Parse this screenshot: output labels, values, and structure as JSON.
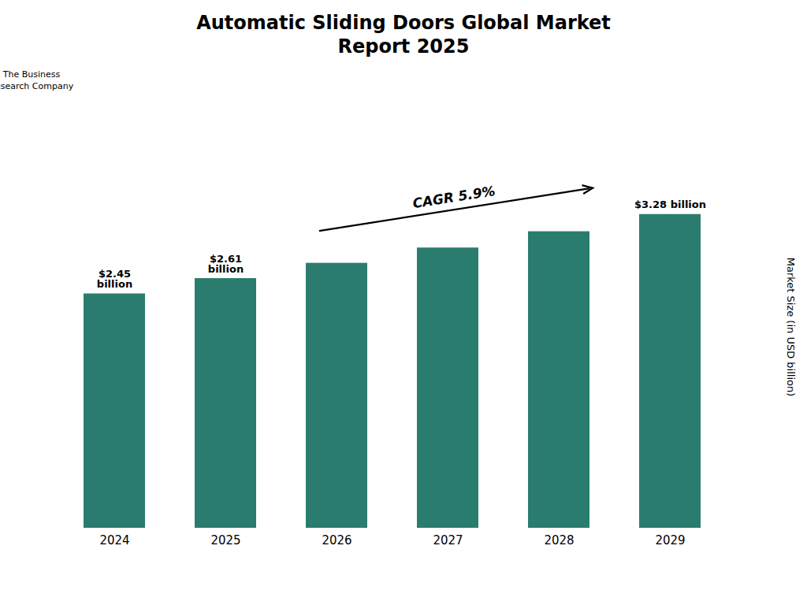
{
  "chart_data": {
    "type": "bar",
    "title": "Automatic Sliding Doors Global Market\nReport 2025",
    "categories": [
      "2024",
      "2025",
      "2026",
      "2027",
      "2028",
      "2029"
    ],
    "values": [
      2.45,
      2.61,
      2.77,
      2.93,
      3.1,
      3.28
    ],
    "value_labels": [
      "$2.45\nbillion",
      "$2.61\nbillion",
      null,
      null,
      null,
      "$3.28 billion"
    ],
    "color": "#2a7d6e",
    "ylabel": "Market Size (in USD billion)",
    "ylim": [
      0,
      4.2
    ],
    "tick_labels": "x",
    "grid": false,
    "annotations": [
      {
        "text": "CAGR 5.9%",
        "from": "2025",
        "to": "2028"
      },
      {
        "text": "The Business\nResearch Company"
      }
    ]
  }
}
